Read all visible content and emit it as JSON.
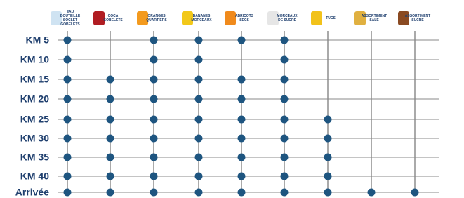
{
  "columns": [
    [
      "EAU",
      "BOUTEILLE",
      "SOCLET",
      "GOBELETS"
    ],
    [
      "COCA",
      "GOBELETS"
    ],
    [
      "ORANGES",
      "QUARTIERS"
    ],
    [
      "BANANES",
      "MORCEAUX"
    ],
    [
      "ABRICOTS",
      "SECS"
    ],
    [
      "MORCEAUX",
      "DE SUCRE"
    ],
    [
      "TUCS"
    ],
    [
      "ASSORTIMENT",
      "SALÉ"
    ],
    [
      "ASSORTIMENT",
      "SUCRÉ"
    ]
  ],
  "rows": [
    {
      "label": "KM 5",
      "stops": [
        true,
        false,
        true,
        true,
        true,
        true,
        false,
        false,
        false
      ]
    },
    {
      "label": "KM 10",
      "stops": [
        true,
        false,
        true,
        true,
        false,
        true,
        false,
        false,
        false
      ]
    },
    {
      "label": "KM 15",
      "stops": [
        true,
        true,
        true,
        true,
        true,
        true,
        false,
        false,
        false
      ]
    },
    {
      "label": "KM 20",
      "stops": [
        true,
        true,
        true,
        true,
        true,
        true,
        false,
        false,
        false
      ]
    },
    {
      "label": "KM 25",
      "stops": [
        true,
        true,
        true,
        true,
        true,
        true,
        true,
        false,
        false
      ]
    },
    {
      "label": "KM 30",
      "stops": [
        true,
        true,
        true,
        true,
        true,
        true,
        true,
        false,
        false
      ]
    },
    {
      "label": "KM 35",
      "stops": [
        true,
        true,
        true,
        true,
        true,
        true,
        true,
        false,
        false
      ]
    },
    {
      "label": "KM 40",
      "stops": [
        true,
        true,
        true,
        true,
        true,
        true,
        true,
        false,
        false
      ]
    },
    {
      "label": "Arrivée",
      "stops": [
        true,
        true,
        true,
        true,
        true,
        true,
        true,
        true,
        true
      ]
    }
  ]
}
